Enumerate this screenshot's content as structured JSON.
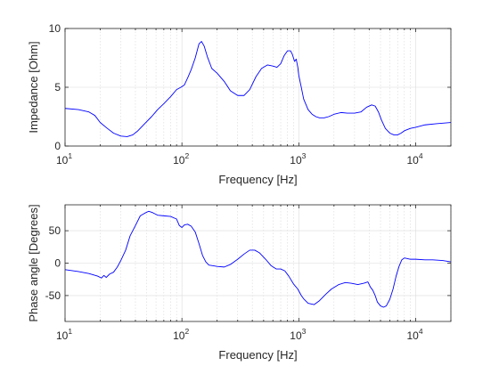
{
  "chart_data": [
    {
      "type": "line",
      "xscale": "log",
      "xlim": [
        10,
        20000
      ],
      "ylim": [
        0,
        10
      ],
      "xticks": [
        10,
        100,
        1000,
        10000
      ],
      "xtick_labels": [
        {
          "base": "10",
          "exp": "1"
        },
        {
          "base": "10",
          "exp": "2"
        },
        {
          "base": "10",
          "exp": "3"
        },
        {
          "base": "10",
          "exp": "4"
        }
      ],
      "yticks": [
        0,
        5,
        10
      ],
      "ytick_labels": [
        "0",
        "5",
        "10"
      ],
      "xlabel": "Frequency [Hz]",
      "ylabel": "Impedance [Ohm]",
      "grid": true,
      "color": "#0000ff",
      "series": [
        {
          "x": [
            10,
            13,
            16,
            18,
            20,
            23,
            26,
            30,
            34,
            38,
            42,
            48,
            55,
            62,
            70,
            80,
            90,
            98,
            105,
            112,
            120,
            130,
            140,
            147,
            155,
            165,
            180,
            200,
            230,
            260,
            300,
            340,
            380,
            430,
            480,
            540,
            600,
            650,
            700,
            750,
            800,
            850,
            880,
            920,
            950,
            980,
            1000,
            1050,
            1100,
            1200,
            1300,
            1400,
            1500,
            1650,
            1800,
            2000,
            2300,
            2600,
            3000,
            3400,
            3800,
            4200,
            4500,
            4800,
            5100,
            5500,
            6000,
            6500,
            7000,
            7500,
            8000,
            9000,
            10000,
            12000,
            15000,
            20000
          ],
          "y": [
            3.2,
            3.1,
            2.9,
            2.6,
            2.0,
            1.5,
            1.1,
            0.85,
            0.8,
            0.95,
            1.3,
            1.9,
            2.5,
            3.1,
            3.6,
            4.2,
            4.8,
            5.0,
            5.2,
            5.8,
            6.5,
            7.5,
            8.7,
            8.9,
            8.5,
            7.6,
            6.6,
            6.2,
            5.5,
            4.7,
            4.3,
            4.3,
            4.8,
            5.9,
            6.6,
            6.9,
            6.8,
            6.7,
            7.0,
            7.7,
            8.1,
            8.1,
            7.8,
            7.2,
            7.4,
            6.7,
            6.0,
            5.0,
            4.0,
            3.1,
            2.7,
            2.5,
            2.4,
            2.4,
            2.5,
            2.7,
            2.85,
            2.8,
            2.8,
            2.9,
            3.3,
            3.5,
            3.4,
            2.9,
            2.2,
            1.5,
            1.1,
            0.95,
            0.95,
            1.1,
            1.3,
            1.5,
            1.6,
            1.8,
            1.9,
            2.0
          ]
        }
      ]
    },
    {
      "type": "line",
      "xscale": "log",
      "xlim": [
        10,
        20000
      ],
      "ylim": [
        -90,
        90
      ],
      "xticks": [
        10,
        100,
        1000,
        10000
      ],
      "xtick_labels": [
        {
          "base": "10",
          "exp": "1"
        },
        {
          "base": "10",
          "exp": "2"
        },
        {
          "base": "10",
          "exp": "3"
        },
        {
          "base": "10",
          "exp": "4"
        }
      ],
      "yticks": [
        -50,
        0,
        50
      ],
      "ytick_labels": [
        "-50",
        "0",
        "50"
      ],
      "xlabel": "Frequency [Hz]",
      "ylabel": "Phase angle [Degrees]",
      "grid": true,
      "color": "#0000ff",
      "series": [
        {
          "x": [
            10,
            13,
            16,
            19,
            20.5,
            21.5,
            22.5,
            24,
            26,
            28,
            30,
            33,
            36,
            40,
            44,
            48,
            52,
            56,
            62,
            70,
            80,
            90,
            95,
            100,
            105,
            112,
            120,
            130,
            140,
            150,
            160,
            170,
            185,
            200,
            230,
            260,
            300,
            340,
            380,
            420,
            460,
            520,
            580,
            640,
            700,
            760,
            820,
            900,
            980,
            1050,
            1100,
            1200,
            1350,
            1500,
            1700,
            1900,
            2200,
            2500,
            2800,
            3200,
            3600,
            3900,
            4100,
            4300,
            4500,
            4700,
            5000,
            5300,
            5600,
            6000,
            6400,
            6800,
            7200,
            7600,
            8000,
            8500,
            9000,
            10000,
            12000,
            14000,
            17000,
            20000
          ],
          "y": [
            -10,
            -13,
            -16,
            -20,
            -23,
            -19,
            -22,
            -17,
            -14,
            -6,
            4,
            20,
            42,
            58,
            73,
            77,
            80,
            78,
            74,
            73,
            72,
            68,
            58,
            55,
            59,
            60,
            57,
            48,
            30,
            12,
            2,
            -3,
            -4,
            -5,
            -6,
            -2,
            6,
            14,
            20,
            20,
            16,
            6,
            -4,
            -9,
            -9,
            -12,
            -20,
            -32,
            -40,
            -50,
            -55,
            -62,
            -64,
            -58,
            -48,
            -40,
            -33,
            -30,
            -31,
            -33,
            -31,
            -29,
            -37,
            -42,
            -50,
            -60,
            -66,
            -68,
            -66,
            -56,
            -40,
            -20,
            -5,
            5,
            8,
            7,
            6,
            6,
            5,
            5,
            4,
            2
          ]
        }
      ]
    }
  ]
}
